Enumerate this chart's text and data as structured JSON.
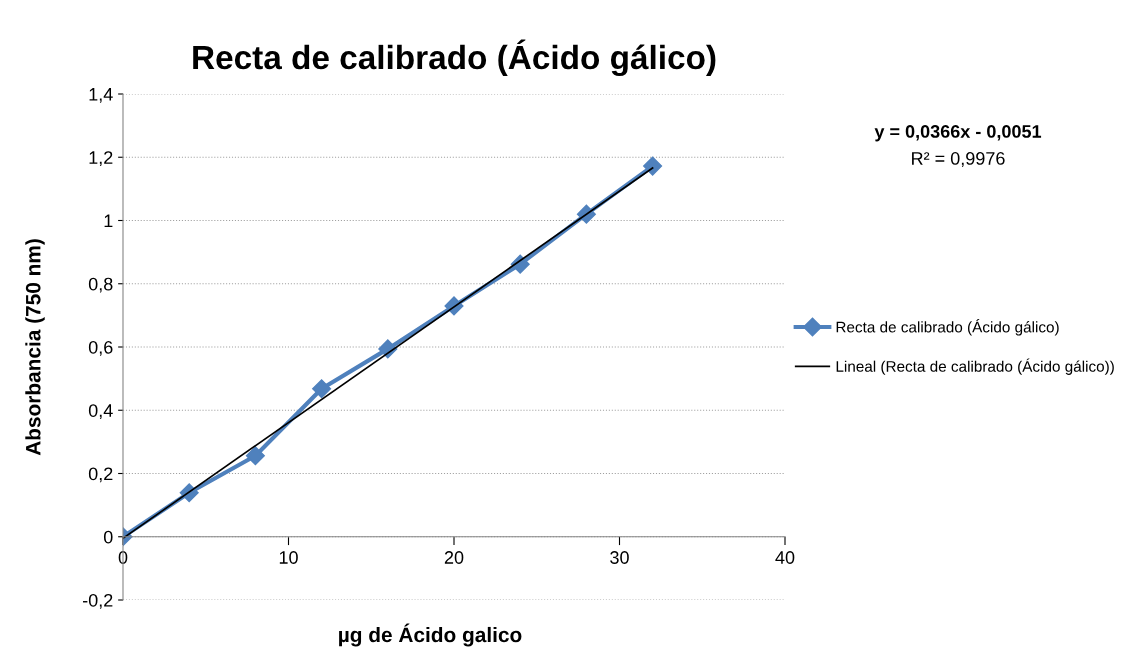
{
  "chart_data": {
    "type": "line",
    "title": "Recta de calibrado (Ácido gálico)",
    "xlabel": "µg de Ácido galico",
    "ylabel": "Absorbancia (750 nm)",
    "series": [
      {
        "name": "Recta de calibrado (Ácido gálico)",
        "color": "#4f81bd",
        "x": [
          0,
          4,
          8,
          12,
          16,
          20,
          24,
          28,
          32
        ],
        "values": [
          0,
          0.139,
          0.256,
          0.468,
          0.594,
          0.73,
          0.862,
          1.02,
          1.172
        ],
        "marker": "diamond"
      },
      {
        "name": "Lineal (Recta de calibrado (Ácido gálico))",
        "type": "line",
        "color": "#000000",
        "x": [
          0,
          32
        ],
        "values": [
          -0.005,
          1.166
        ],
        "marker": "none"
      }
    ],
    "annotations": [
      "y = 0,0366x - 0,0051",
      "R² = 0,9976"
    ],
    "xlim": [
      0,
      40
    ],
    "xticks": [
      0,
      10,
      20,
      30,
      40
    ],
    "ylim": [
      -0.2,
      1.4
    ],
    "yticks": [
      {
        "value": -0.2,
        "label": "-0,2"
      },
      0,
      {
        "value": 0.2,
        "label": "0,2"
      },
      {
        "value": 0.4,
        "label": "0,4"
      },
      {
        "value": 0.6,
        "label": "0,6"
      },
      {
        "value": 0.8,
        "label": "0,8"
      },
      1,
      {
        "value": 1.2,
        "label": "1,2"
      },
      {
        "value": 1.4,
        "label": "1,4"
      }
    ],
    "grid": "y",
    "legend": "right",
    "line_style": "solid"
  }
}
